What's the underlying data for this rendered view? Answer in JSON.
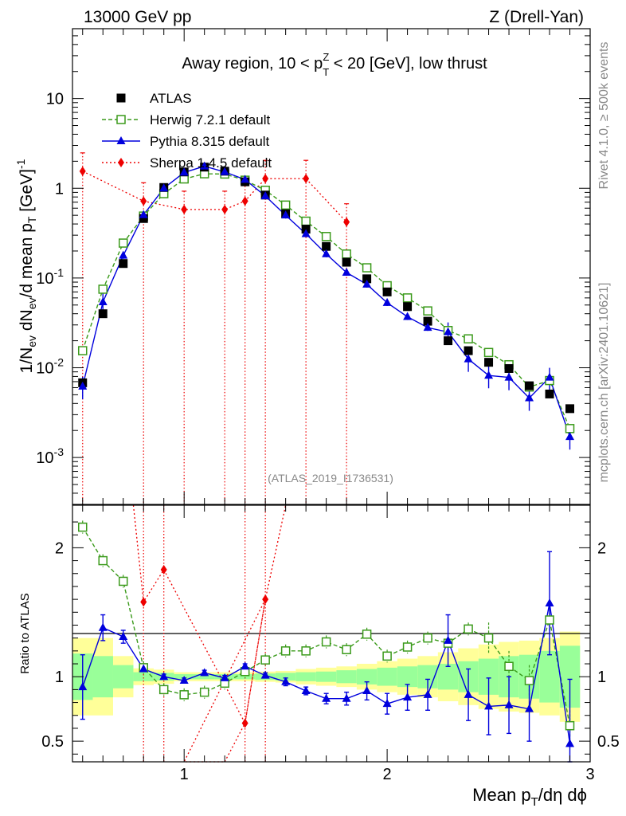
{
  "header": {
    "left": "13000 GeV pp",
    "right": "Z (Drell-Yan)"
  },
  "region": {
    "part1": "Away region, 10 < p",
    "sup": "Z",
    "sub": "T",
    "part2": " < 20 [GeV], low thrust"
  },
  "side": {
    "rivet": "Rivet 4.1.0, ≥ 500k events",
    "mcplots": "mcplots.cern.ch [arXiv:2401.10621]"
  },
  "watermark": "(ATLAS_2019_I1736531)",
  "colors": {
    "atlas": "#000000",
    "herwig": "#3a9a1a",
    "pythia": "#0000dd",
    "sherpa": "#ee0000",
    "band_outer": "#ffff99",
    "band_inner": "#99ff99"
  },
  "chart_data": [
    {
      "type": "scatter",
      "title": "Away region, 10 < pT^Z < 20 [GeV], low thrust",
      "xlabel": "Mean pT/dη dϕ",
      "ylabel": "1/Nev dNev/d mean pT [GeV]^-1",
      "yscale": "log",
      "xlim": [
        0.45,
        3.0
      ],
      "ylim": [
        0.0003,
        60
      ],
      "x_ticks": [
        "1",
        "2",
        "3"
      ],
      "y_ticks": [
        "10^-3",
        "10^-2",
        "10^-1",
        "1",
        "10"
      ],
      "x": [
        0.5,
        0.6,
        0.7,
        0.8,
        0.9,
        1.0,
        1.1,
        1.2,
        1.3,
        1.4,
        1.5,
        1.6,
        1.7,
        1.8,
        1.9,
        2.0,
        2.1,
        2.2,
        2.3,
        2.4,
        2.5,
        2.6,
        2.7,
        2.8,
        2.9
      ],
      "series": [
        {
          "name": "ATLAS",
          "style": "square",
          "values": [
            0.0068,
            0.04,
            0.145,
            0.46,
            1.02,
            1.52,
            1.72,
            1.55,
            1.18,
            0.84,
            0.52,
            0.35,
            0.225,
            0.15,
            0.098,
            0.07,
            0.048,
            0.033,
            0.02,
            0.0155,
            0.0115,
            0.0098,
            0.0063,
            0.0051,
            0.0035
          ]
        },
        {
          "name": "Herwig 7.2.1 default",
          "style": "open-square-dashed",
          "values": [
            0.0155,
            0.075,
            0.245,
            0.49,
            0.87,
            1.27,
            1.45,
            1.44,
            1.23,
            0.95,
            0.65,
            0.43,
            0.29,
            0.185,
            0.13,
            0.082,
            0.06,
            0.043,
            0.026,
            0.021,
            0.0148,
            0.0108,
            0.0061,
            0.0072,
            0.0021
          ]
        },
        {
          "name": "Pythia 8.315 default",
          "style": "triangle-solid",
          "values": [
            0.0062,
            0.054,
            0.178,
            0.505,
            1.0,
            1.5,
            1.76,
            1.52,
            1.25,
            0.82,
            0.5,
            0.31,
            0.185,
            0.115,
            0.085,
            0.053,
            0.037,
            0.028,
            0.025,
            0.0125,
            0.0082,
            0.0078,
            0.0046,
            0.0078,
            0.0017
          ]
        },
        {
          "name": "Sherpa 1.4.5 default",
          "style": "diamond-dotted",
          "x": [
            0.5,
            0.8,
            1.0,
            1.2,
            1.3,
            1.4,
            1.6,
            1.8
          ],
          "values": [
            1.55,
            0.72,
            0.58,
            0.58,
            0.72,
            1.28,
            1.28,
            0.42
          ]
        }
      ]
    },
    {
      "type": "line",
      "title": "Ratio to ATLAS",
      "xlabel": "Mean pT/dη dϕ",
      "ylabel": "Ratio to ATLAS",
      "xlim": [
        0.45,
        3.0
      ],
      "ylim": [
        0.34,
        2.33
      ],
      "y_ticks": [
        "0.5",
        "1",
        "2"
      ],
      "series": [
        {
          "name": "Herwig 7.2.1 default",
          "values": [
            2.16,
            1.9,
            1.74,
            1.07,
            0.9,
            0.86,
            0.88,
            0.95,
            1.04,
            1.13,
            1.2,
            1.2,
            1.27,
            1.21,
            1.33,
            1.16,
            1.23,
            1.3,
            1.26,
            1.37,
            1.3,
            1.08,
            0.97,
            1.44,
            0.62
          ]
        },
        {
          "name": "Pythia 8.315 default",
          "values": [
            0.92,
            1.38,
            1.31,
            1.06,
            1.0,
            0.97,
            1.03,
            0.99,
            1.08,
            1.01,
            0.96,
            0.89,
            0.83,
            0.83,
            0.89,
            0.79,
            0.84,
            0.86,
            1.28,
            0.86,
            0.77,
            0.78,
            0.75,
            1.57,
            0.48
          ]
        },
        {
          "name": "Sherpa 1.4.5 default",
          "x": [
            0.8,
            0.9,
            1.3,
            1.4
          ],
          "values": [
            1.58,
            1.83,
            0.64,
            1.6
          ]
        }
      ]
    }
  ]
}
